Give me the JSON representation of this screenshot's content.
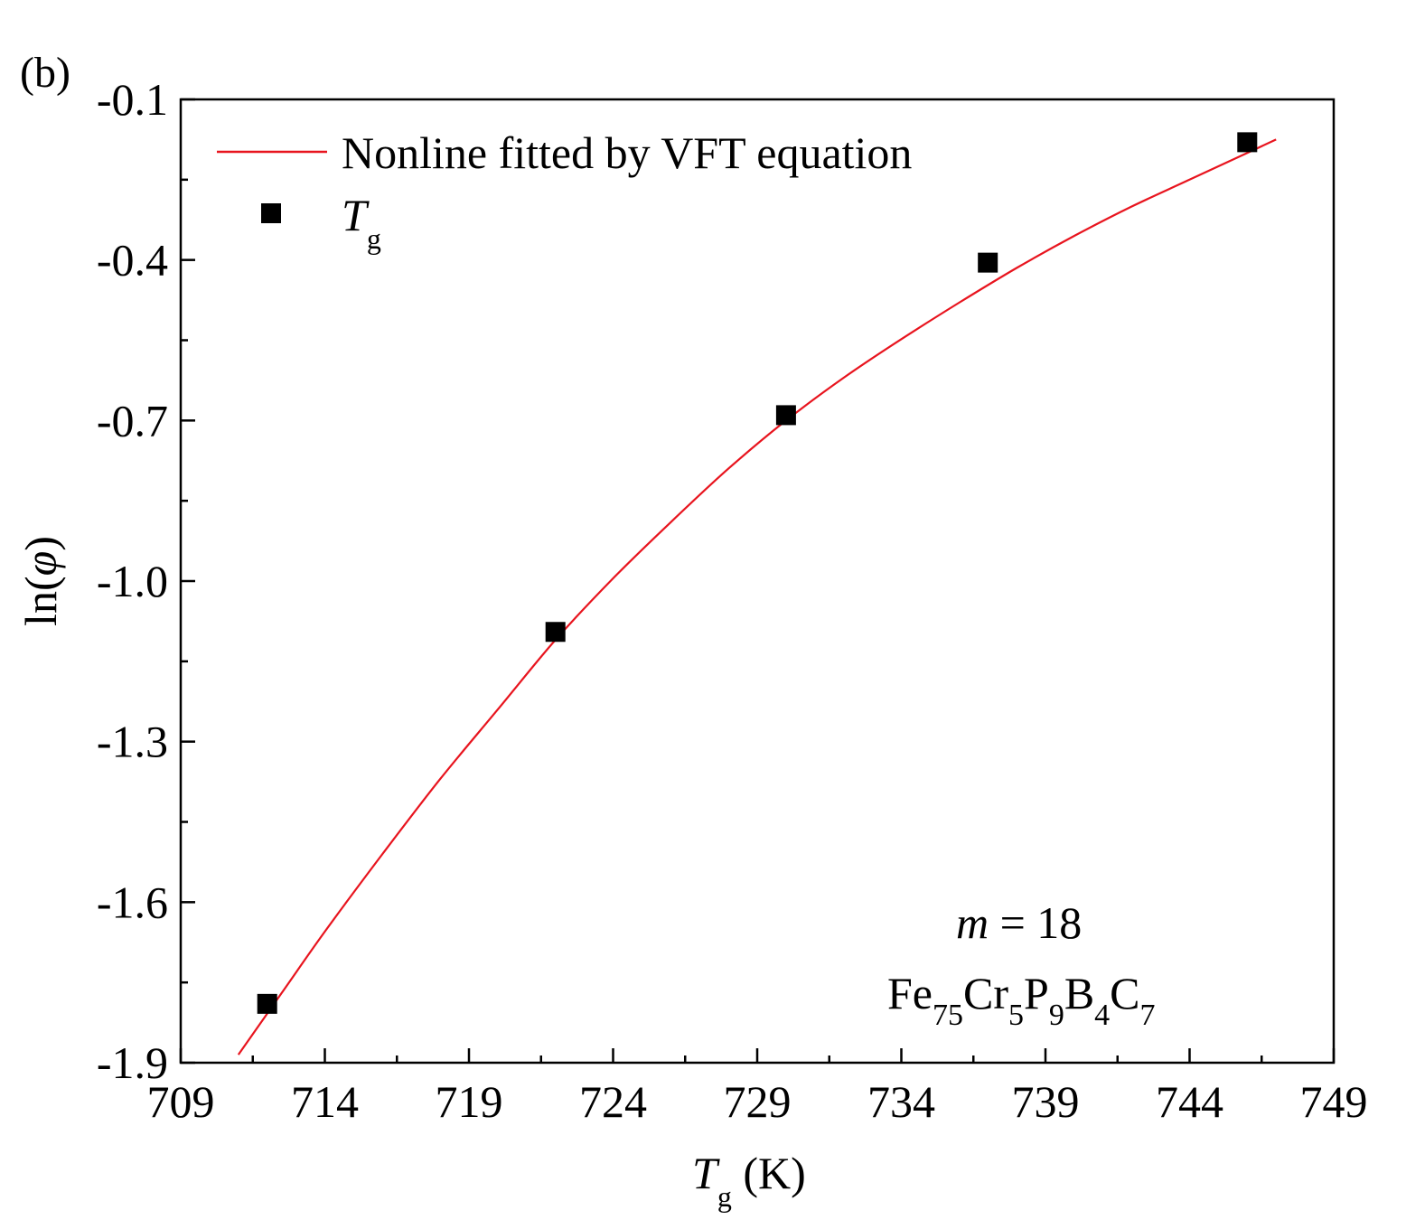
{
  "panel_label": "(b)",
  "colors": {
    "fit_line": "#e8141e",
    "marker": "#000000",
    "axis": "#000000"
  },
  "chart_data": {
    "type": "scatter",
    "title": "",
    "xlabel": {
      "main": "T",
      "sub": "g",
      "unit": " (K)"
    },
    "ylabel": {
      "prefix": "ln(",
      "symbol": "φ",
      "suffix": ")"
    },
    "xlim": [
      709,
      749
    ],
    "ylim": [
      -1.9,
      -0.1
    ],
    "xticks": [
      709,
      714,
      719,
      724,
      729,
      734,
      739,
      744,
      749
    ],
    "xtick_labels": [
      "709",
      "714",
      "719",
      "724",
      "729",
      "734",
      "739",
      "744",
      "749"
    ],
    "yticks": [
      -1.9,
      -1.6,
      -1.3,
      -1.0,
      -0.7,
      -0.4,
      -0.1
    ],
    "ytick_labels": [
      "-1.9",
      "-1.6",
      "-1.3",
      "-1.0",
      "-0.7",
      "-0.4",
      "-0.1"
    ],
    "grid": false,
    "legend_position": "top-left",
    "series": [
      {
        "name": "Nonline fitted by VFT equation",
        "kind": "line",
        "x": [
          711.0,
          712.5,
          714.0,
          716.0,
          718.0,
          720.0,
          722.0,
          724.0,
          726.0,
          728.0,
          730.0,
          732.0,
          734.0,
          736.0,
          738.0,
          740.0,
          742.0,
          744.0,
          746.0,
          747.0
        ],
        "y": [
          -1.885,
          -1.77,
          -1.655,
          -1.51,
          -1.37,
          -1.24,
          -1.11,
          -0.995,
          -0.89,
          -0.79,
          -0.7,
          -0.62,
          -0.548,
          -0.48,
          -0.415,
          -0.355,
          -0.3,
          -0.25,
          -0.2,
          -0.175
        ]
      },
      {
        "name": "T",
        "name_sub": "g",
        "kind": "scatter",
        "marker": "square",
        "x": [
          712.0,
          722.0,
          730.0,
          737.0,
          746.0
        ],
        "y": [
          -1.79,
          -1.095,
          -0.69,
          -0.405,
          -0.18
        ]
      }
    ],
    "annotations": {
      "m_label": "m",
      "m_value": " = 18",
      "composition": [
        {
          "text": "Fe",
          "sub": false
        },
        {
          "text": "75",
          "sub": true
        },
        {
          "text": "Cr",
          "sub": false
        },
        {
          "text": "5",
          "sub": true
        },
        {
          "text": "P",
          "sub": false
        },
        {
          "text": "9",
          "sub": true
        },
        {
          "text": "B",
          "sub": false
        },
        {
          "text": "4",
          "sub": true
        },
        {
          "text": "C",
          "sub": false
        },
        {
          "text": "7",
          "sub": true
        }
      ]
    }
  }
}
